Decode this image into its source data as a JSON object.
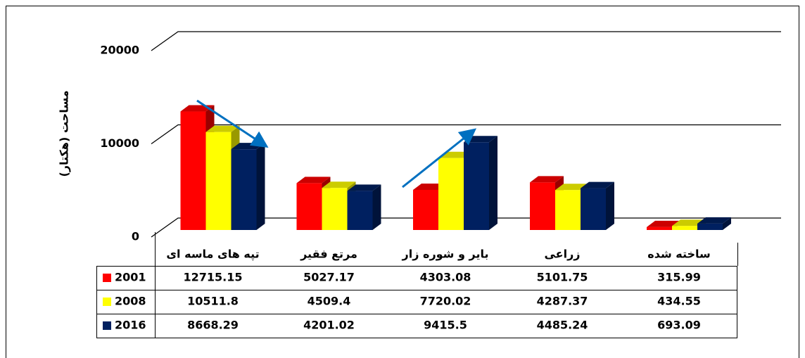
{
  "chart_data": {
    "type": "bar3d",
    "y_axis_label": "مساحت (هکتار)",
    "categories": [
      "تپه های ماسه ای",
      "مرتع فقیر",
      "بایر و شوره زار",
      "زراعی",
      "ساخته شده"
    ],
    "series": [
      {
        "name": "2001",
        "color": "#ff0000",
        "values": [
          12715.15,
          5027.17,
          4303.08,
          5101.75,
          315.99
        ]
      },
      {
        "name": "2008",
        "color": "#ffff00",
        "values": [
          10511.8,
          4509.4,
          7720.02,
          4287.37,
          434.55
        ]
      },
      {
        "name": "2016",
        "color": "#002060",
        "values": [
          8668.29,
          4201.02,
          9415.5,
          4485.24,
          693.09
        ]
      }
    ],
    "ylim": [
      0,
      20000
    ],
    "yticks": [
      0,
      10000,
      20000
    ],
    "grid": true,
    "data_table": true
  }
}
